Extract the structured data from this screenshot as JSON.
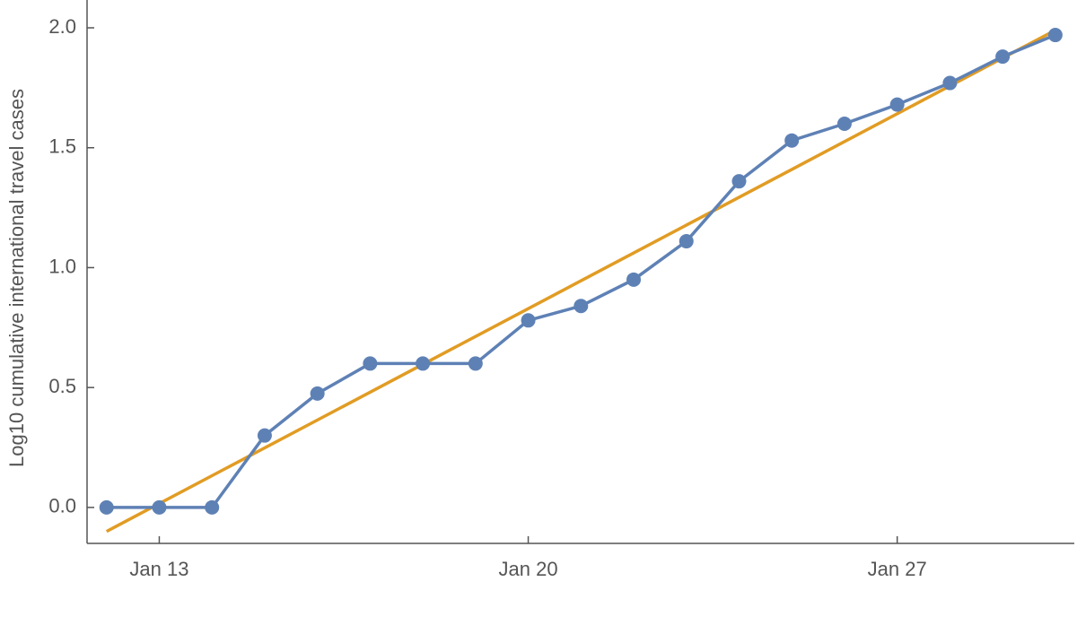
{
  "chart_data": {
    "type": "line",
    "y_label": "Log10 cumulative international travel cases",
    "xlim": [
      11.63,
      30.36
    ],
    "xticks": [
      {
        "value": 13,
        "label": "Jan 13"
      },
      {
        "value": 20,
        "label": "Jan 20"
      },
      {
        "value": 27,
        "label": "Jan 27"
      }
    ],
    "ylim": [
      -0.15,
      2.116
    ],
    "yticks": [
      {
        "value": 0,
        "label": "0.0"
      },
      {
        "value": 0.5,
        "label": "0.5"
      },
      {
        "value": 1,
        "label": "1.0"
      },
      {
        "value": 1.5,
        "label": "1.5"
      },
      {
        "value": 2,
        "label": "2.0"
      }
    ],
    "series": [
      {
        "color": "#5e81b5",
        "markers": true,
        "x": [
          12,
          13,
          14,
          15,
          16,
          17,
          18,
          19,
          20,
          21,
          22,
          23,
          24,
          25,
          26,
          27,
          28,
          29,
          30
        ],
        "values": [
          0,
          0,
          0,
          0.3,
          0.475,
          0.6,
          0.6,
          0.6,
          0.78,
          0.84,
          0.95,
          1.11,
          1.36,
          1.53,
          1.6,
          1.68,
          1.77,
          1.88,
          1.97
        ]
      },
      {
        "color": "#e19c24",
        "markers": false,
        "x": [
          12,
          30
        ],
        "values": [
          -0.1,
          1.99
        ]
      }
    ]
  }
}
